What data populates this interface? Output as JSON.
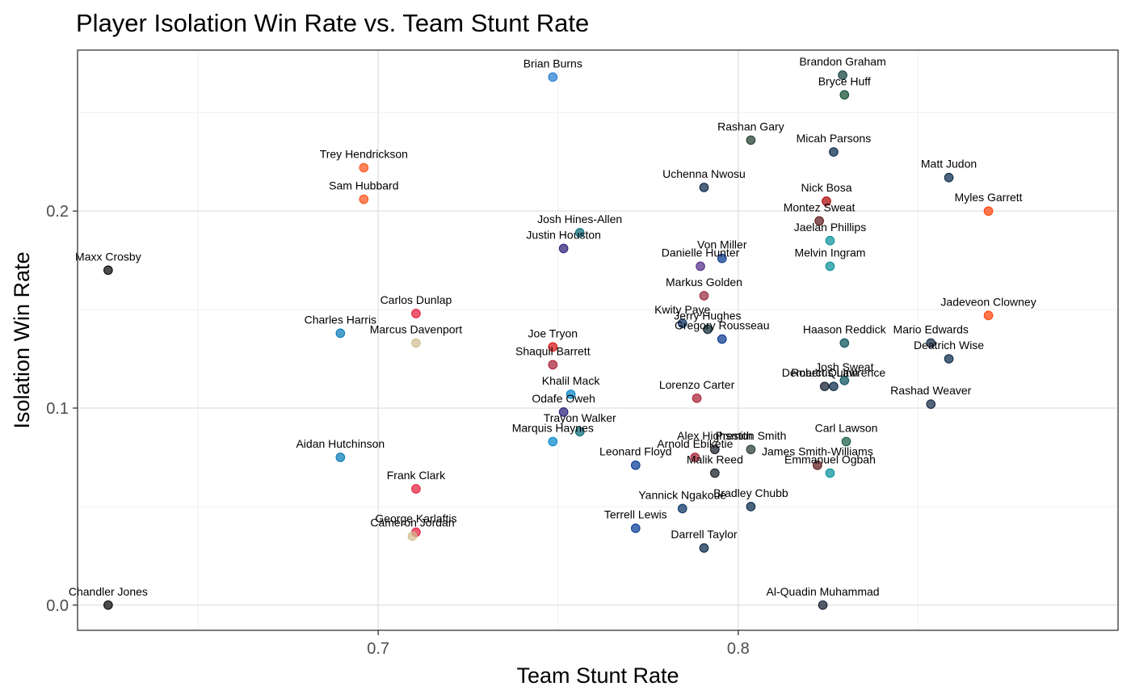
{
  "chart_data": {
    "type": "scatter",
    "title": "Player Isolation Win Rate vs. Team Stunt Rate",
    "xlabel": "Team Stunt Rate",
    "ylabel": "Isolation Win Rate",
    "xlim": [
      0.6165,
      0.9055
    ],
    "ylim": [
      -0.0128,
      0.2817
    ],
    "x_ticks": [
      0.7,
      0.8
    ],
    "x_tick_labels": [
      "0.7",
      "0.8"
    ],
    "x_minor_ticks": [
      0.65,
      0.75,
      0.85
    ],
    "y_ticks": [
      0.0,
      0.1,
      0.2
    ],
    "y_tick_labels": [
      "0.0",
      "0.1",
      "0.2"
    ],
    "y_minor_ticks": [
      0.05,
      0.15,
      0.25
    ],
    "grid": true,
    "legend": "none",
    "point_opacity": 0.7,
    "points": [
      {
        "label": "Brian Burns",
        "x": 0.7485,
        "y": 0.268,
        "color": "#1f77d0"
      },
      {
        "label": "Brandon Graham",
        "x": 0.829,
        "y": 0.269,
        "color": "#0b3d3b"
      },
      {
        "label": "Bryce Huff",
        "x": 0.8295,
        "y": 0.259,
        "color": "#0b4a2e"
      },
      {
        "label": "Rashan Gary",
        "x": 0.8035,
        "y": 0.236,
        "color": "#1a3526"
      },
      {
        "label": "Micah Parsons",
        "x": 0.8265,
        "y": 0.23,
        "color": "#002244"
      },
      {
        "label": "Trey Hendrickson",
        "x": 0.696,
        "y": 0.222,
        "color": "#fb4f14"
      },
      {
        "label": "Matt Judon",
        "x": 0.8585,
        "y": 0.217,
        "color": "#002244"
      },
      {
        "label": "Uchenna Nwosu",
        "x": 0.7905,
        "y": 0.212,
        "color": "#002244"
      },
      {
        "label": "Sam Hubbard",
        "x": 0.696,
        "y": 0.206,
        "color": "#fb4f14"
      },
      {
        "label": "Nick Bosa",
        "x": 0.8245,
        "y": 0.205,
        "color": "#aa0000"
      },
      {
        "label": "Myles Garrett",
        "x": 0.8695,
        "y": 0.2,
        "color": "#ff3c00"
      },
      {
        "label": "Montez Sweat",
        "x": 0.8225,
        "y": 0.195,
        "color": "#5a1414"
      },
      {
        "label": "Josh Hines-Allen",
        "x": 0.756,
        "y": 0.189,
        "color": "#006778"
      },
      {
        "label": "Jaelan Phillips",
        "x": 0.8255,
        "y": 0.185,
        "color": "#008e97"
      },
      {
        "label": "Justin Houston",
        "x": 0.7515,
        "y": 0.181,
        "color": "#241773"
      },
      {
        "label": "Von Miller",
        "x": 0.7955,
        "y": 0.176,
        "color": "#00338d"
      },
      {
        "label": "Danielle Hunter",
        "x": 0.7895,
        "y": 0.172,
        "color": "#4f2683"
      },
      {
        "label": "Melvin Ingram",
        "x": 0.8255,
        "y": 0.172,
        "color": "#008e97"
      },
      {
        "label": "Maxx Crosby",
        "x": 0.625,
        "y": 0.17,
        "color": "#000000"
      },
      {
        "label": "Markus Golden",
        "x": 0.7905,
        "y": 0.157,
        "color": "#97233f"
      },
      {
        "label": "Carlos Dunlap",
        "x": 0.7105,
        "y": 0.148,
        "color": "#e31837"
      },
      {
        "label": "Jadeveon Clowney",
        "x": 0.8695,
        "y": 0.147,
        "color": "#ff3c00"
      },
      {
        "label": "Kwity Paye",
        "x": 0.7845,
        "y": 0.143,
        "color": "#002c5f"
      },
      {
        "label": "Jerry Hughes",
        "x": 0.7915,
        "y": 0.14,
        "color": "#03202f"
      },
      {
        "label": "Charles Harris",
        "x": 0.6895,
        "y": 0.138,
        "color": "#0076b6"
      },
      {
        "label": "Gregory Rousseau",
        "x": 0.7955,
        "y": 0.135,
        "color": "#00338d"
      },
      {
        "label": "Marcus Davenport",
        "x": 0.7105,
        "y": 0.133,
        "color": "#d3bc8d"
      },
      {
        "label": "Haason Reddick",
        "x": 0.8295,
        "y": 0.133,
        "color": "#004c54"
      },
      {
        "label": "Mario Edwards",
        "x": 0.8535,
        "y": 0.133,
        "color": "#0c2340"
      },
      {
        "label": "Joe Tryon",
        "x": 0.7485,
        "y": 0.131,
        "color": "#d50a0a"
      },
      {
        "label": "Deatrich Wise",
        "x": 0.8585,
        "y": 0.125,
        "color": "#002244"
      },
      {
        "label": "Shaquil Barrett",
        "x": 0.7485,
        "y": 0.122,
        "color": "#a71930"
      },
      {
        "label": "Josh Sweat",
        "x": 0.8295,
        "y": 0.114,
        "color": "#004c54"
      },
      {
        "label": "Demarcus Lawrence",
        "x": 0.8265,
        "y": 0.111,
        "color": "#002244"
      },
      {
        "label": "Robert Quinn",
        "x": 0.824,
        "y": 0.111,
        "color": "#0b162a"
      },
      {
        "label": "Khalil Mack",
        "x": 0.7535,
        "y": 0.107,
        "color": "#0080c6"
      },
      {
        "label": "Lorenzo Carter",
        "x": 0.7885,
        "y": 0.105,
        "color": "#a71930"
      },
      {
        "label": "Rashad Weaver",
        "x": 0.8535,
        "y": 0.102,
        "color": "#0c2340"
      },
      {
        "label": "Odafe Oweh",
        "x": 0.7515,
        "y": 0.098,
        "color": "#241773"
      },
      {
        "label": "Trayon Walker",
        "x": 0.756,
        "y": 0.088,
        "color": "#006778"
      },
      {
        "label": "Marquis Haynes",
        "x": 0.7485,
        "y": 0.083,
        "color": "#0085ca"
      },
      {
        "label": "Carl Lawson",
        "x": 0.83,
        "y": 0.083,
        "color": "#125740"
      },
      {
        "label": "Preston Smith",
        "x": 0.8035,
        "y": 0.079,
        "color": "#203731"
      },
      {
        "label": "Alex Highsmith",
        "x": 0.7935,
        "y": 0.079,
        "color": "#101820"
      },
      {
        "label": "Arnold Ebiketie",
        "x": 0.788,
        "y": 0.075,
        "color": "#a71930"
      },
      {
        "label": "Aidan Hutchinson",
        "x": 0.6895,
        "y": 0.075,
        "color": "#0076b6"
      },
      {
        "label": "Leonard Floyd",
        "x": 0.7715,
        "y": 0.071,
        "color": "#003594"
      },
      {
        "label": "James Smith-Williams",
        "x": 0.822,
        "y": 0.071,
        "color": "#5a1414"
      },
      {
        "label": "Malik Reed",
        "x": 0.7935,
        "y": 0.067,
        "color": "#101820"
      },
      {
        "label": "Emmanuel Ogbah",
        "x": 0.8255,
        "y": 0.067,
        "color": "#008e97"
      },
      {
        "label": "Frank Clark",
        "x": 0.7105,
        "y": 0.059,
        "color": "#e31837"
      },
      {
        "label": "Bradley Chubb",
        "x": 0.8035,
        "y": 0.05,
        "color": "#002244"
      },
      {
        "label": "Yannick Ngakoue",
        "x": 0.7845,
        "y": 0.049,
        "color": "#002c5f"
      },
      {
        "label": "Terrell Lewis",
        "x": 0.7715,
        "y": 0.039,
        "color": "#003594"
      },
      {
        "label": "George Karlaftis",
        "x": 0.7105,
        "y": 0.037,
        "color": "#e31837"
      },
      {
        "label": "Cameron Jordan",
        "x": 0.7095,
        "y": 0.035,
        "color": "#d3bc8d"
      },
      {
        "label": "Darrell Taylor",
        "x": 0.7905,
        "y": 0.029,
        "color": "#002244"
      },
      {
        "label": "Chandler Jones",
        "x": 0.625,
        "y": 0.0,
        "color": "#000000"
      },
      {
        "label": "Al-Quadin Muhammad",
        "x": 0.8235,
        "y": 0.0,
        "color": "#0b162a"
      }
    ]
  }
}
